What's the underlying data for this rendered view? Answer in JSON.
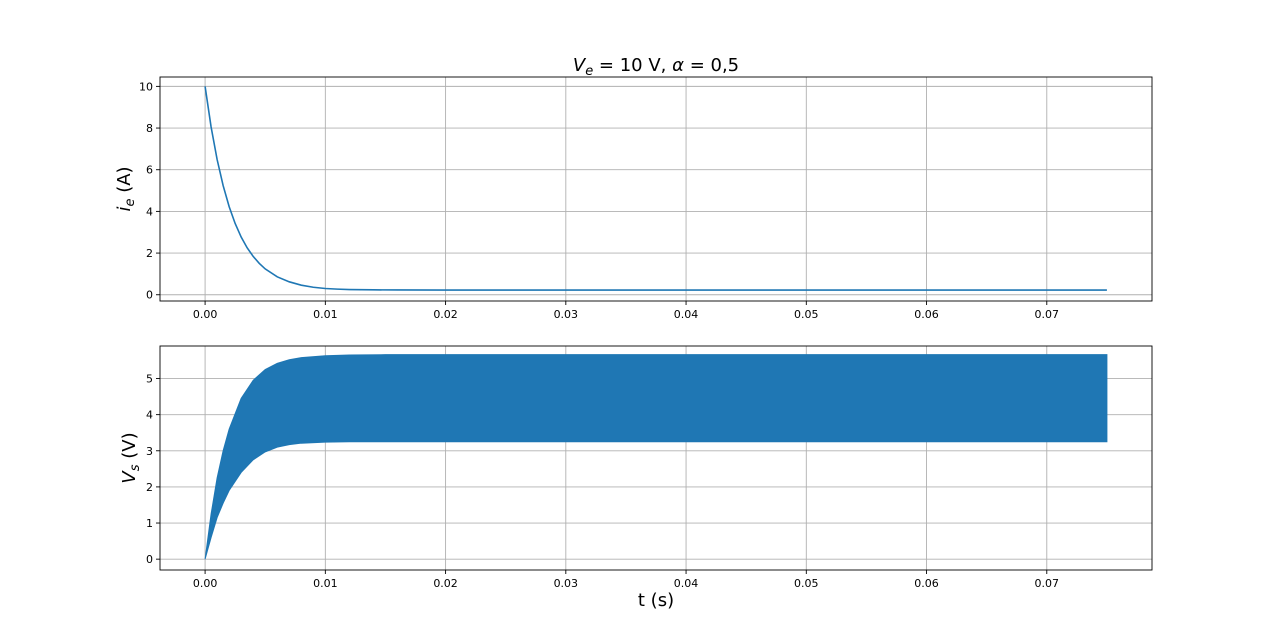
{
  "chart_data": [
    {
      "type": "line",
      "title": "V_e = 10 V,  α = 0,5",
      "title_parts": {
        "v": "V",
        "v_sub": "e",
        "eq1": " = 10 V,  ",
        "alpha": "α",
        "eq2": " = 0,5"
      },
      "ylabel": "i_e (A)",
      "ylabel_parts": {
        "sym": "i",
        "sub": "e",
        "unit": " (A)"
      },
      "xlabel": "",
      "xlim": [
        -0.00375,
        0.07875
      ],
      "ylim": [
        -0.3,
        10.45
      ],
      "xticks": [
        0.0,
        0.01,
        0.02,
        0.03,
        0.04,
        0.05,
        0.06,
        0.07
      ],
      "xtick_labels": [
        "0.00",
        "0.01",
        "0.02",
        "0.03",
        "0.04",
        "0.05",
        "0.06",
        "0.07"
      ],
      "yticks": [
        0,
        2,
        4,
        6,
        8,
        10
      ],
      "ytick_labels": [
        "0",
        "2",
        "4",
        "6",
        "8",
        "10"
      ],
      "grid": true,
      "color": "#1f77b4",
      "series": [
        {
          "x": [
            0.0,
            0.0005,
            0.001,
            0.0015,
            0.002,
            0.0025,
            0.003,
            0.0035,
            0.004,
            0.0045,
            0.005,
            0.006,
            0.007,
            0.008,
            0.009,
            0.01,
            0.011,
            0.012,
            0.014,
            0.016,
            0.02,
            0.03,
            0.04,
            0.05,
            0.06,
            0.07,
            0.075
          ],
          "y": [
            10.0,
            8.05,
            6.49,
            5.24,
            4.23,
            3.42,
            2.77,
            2.25,
            1.84,
            1.51,
            1.24,
            0.86,
            0.62,
            0.46,
            0.36,
            0.3,
            0.27,
            0.25,
            0.235,
            0.23,
            0.225,
            0.225,
            0.225,
            0.225,
            0.225,
            0.225,
            0.225
          ]
        }
      ]
    },
    {
      "type": "area",
      "title": "",
      "ylabel": "V_s (V)",
      "ylabel_parts": {
        "sym": "V",
        "sub": "s",
        "unit": " (V)"
      },
      "xlabel": "t (s)",
      "xlim": [
        -0.00375,
        0.07875
      ],
      "ylim": [
        -0.3,
        5.9
      ],
      "xticks": [
        0.0,
        0.01,
        0.02,
        0.03,
        0.04,
        0.05,
        0.06,
        0.07
      ],
      "xtick_labels": [
        "0.00",
        "0.01",
        "0.02",
        "0.03",
        "0.04",
        "0.05",
        "0.06",
        "0.07"
      ],
      "yticks": [
        0,
        1,
        2,
        3,
        4,
        5
      ],
      "ytick_labels": [
        "0",
        "1",
        "2",
        "3",
        "4",
        "5"
      ],
      "grid": true,
      "color": "#1f77b4",
      "series": [
        {
          "name": "upper envelope",
          "x": [
            0.0,
            0.0005,
            0.001,
            0.0015,
            0.002,
            0.003,
            0.004,
            0.005,
            0.006,
            0.007,
            0.008,
            0.01,
            0.012,
            0.015,
            0.02,
            0.03,
            0.04,
            0.05,
            0.06,
            0.07,
            0.075
          ],
          "y": [
            0.0,
            1.25,
            2.25,
            3.0,
            3.6,
            4.45,
            4.95,
            5.25,
            5.42,
            5.52,
            5.58,
            5.63,
            5.65,
            5.66,
            5.66,
            5.66,
            5.66,
            5.66,
            5.66,
            5.66,
            5.66
          ]
        },
        {
          "name": "lower envelope",
          "x": [
            0.0,
            0.0005,
            0.001,
            0.0015,
            0.002,
            0.003,
            0.004,
            0.005,
            0.006,
            0.007,
            0.008,
            0.01,
            0.012,
            0.015,
            0.02,
            0.03,
            0.04,
            0.05,
            0.06,
            0.07,
            0.075
          ],
          "y": [
            0.0,
            0.6,
            1.15,
            1.55,
            1.9,
            2.4,
            2.75,
            2.97,
            3.1,
            3.17,
            3.21,
            3.24,
            3.25,
            3.25,
            3.25,
            3.25,
            3.25,
            3.25,
            3.25,
            3.25,
            3.25
          ]
        }
      ]
    }
  ]
}
